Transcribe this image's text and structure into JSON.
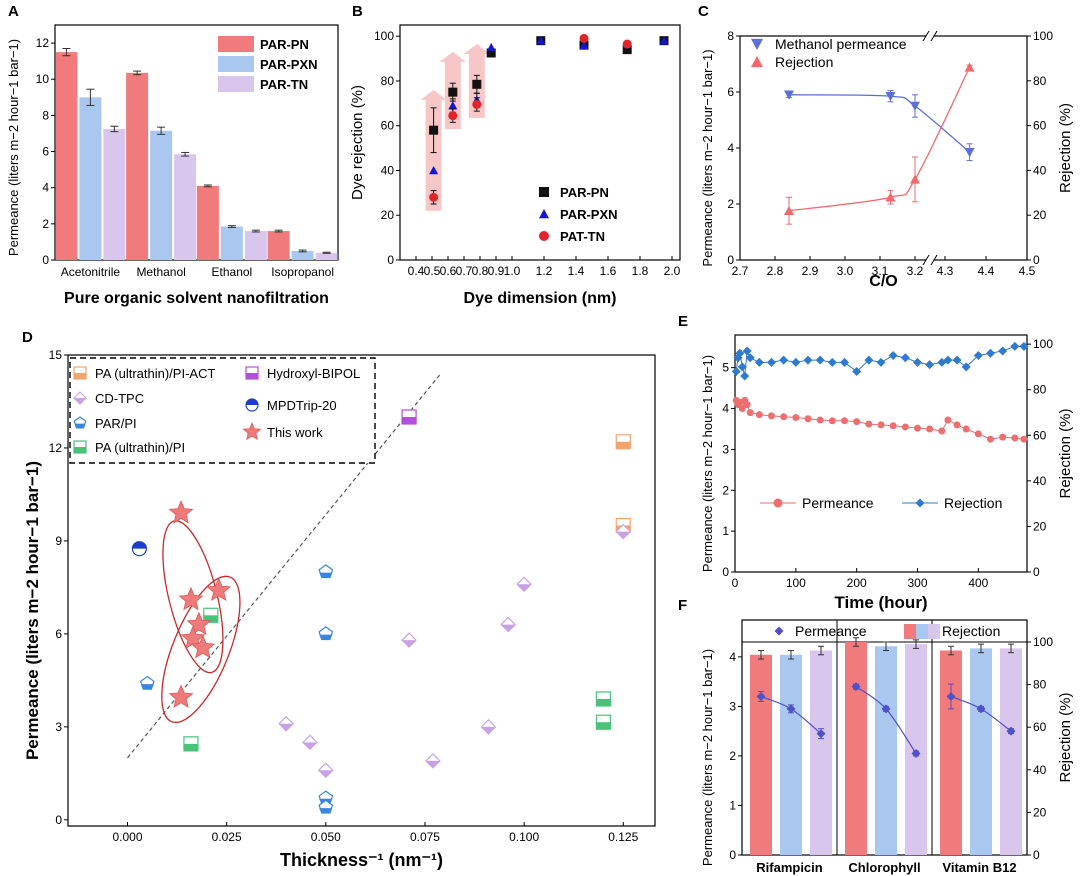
{
  "chart_data": [
    {
      "panel": "A",
      "type": "bar",
      "xlabel": "Pure organic solvent nanofiltration",
      "ylabel": "Permeance (liters m−2 hour−1 bar−1)",
      "ylim": [
        0,
        13
      ],
      "yticks": [
        0,
        2,
        4,
        6,
        8,
        10,
        12
      ],
      "categories": [
        "Acetonitrile",
        "Methanol",
        "Ethanol",
        "Isopropanol"
      ],
      "legend_position": "top-right",
      "series": [
        {
          "name": "PAR-PN",
          "color": "#f07a7c",
          "values": [
            11.5,
            10.35,
            4.1,
            1.6
          ],
          "errors": [
            0.2,
            0.1,
            0.05,
            0.05
          ]
        },
        {
          "name": "PAR-PXN",
          "color": "#a9c7ef",
          "values": [
            9.0,
            7.15,
            1.85,
            0.5
          ],
          "errors": [
            0.45,
            0.2,
            0.05,
            0.05
          ]
        },
        {
          "name": "PAR-TN",
          "color": "#d9c6ec",
          "values": [
            7.25,
            5.85,
            1.6,
            0.4
          ],
          "errors": [
            0.15,
            0.1,
            0.05,
            0.03
          ]
        }
      ]
    },
    {
      "panel": "B",
      "type": "scatter",
      "xlabel": "Dye dimension (nm)",
      "ylabel": "Dye rejection (%)",
      "xlim": [
        0.3,
        2.05
      ],
      "ylim": [
        0,
        105
      ],
      "xticks": [
        0.4,
        0.5,
        0.6,
        0.7,
        0.8,
        0.9,
        1.0,
        1.2,
        1.4,
        1.6,
        1.8,
        2.0
      ],
      "yticks": [
        0,
        20,
        40,
        60,
        80,
        100
      ],
      "legend_position": "bottom-right",
      "arrows_x": [
        0.51,
        0.63,
        0.78
      ],
      "series": [
        {
          "name": "PAR-PN",
          "marker": "square",
          "color": "#111111",
          "x": [
            0.51,
            0.63,
            0.78,
            0.87,
            1.18,
            1.45,
            1.72,
            1.95
          ],
          "y": [
            58,
            75,
            78.5,
            92.5,
            98,
            96,
            94,
            98
          ],
          "errors": [
            10,
            4,
            4,
            1,
            1,
            1,
            1,
            1
          ]
        },
        {
          "name": "PAR-PXN",
          "marker": "triangle",
          "color": "#1515d0",
          "x": [
            0.51,
            0.63,
            0.78,
            0.87,
            1.18,
            1.45,
            1.72,
            1.95
          ],
          "y": [
            40,
            69,
            71.5,
            95,
            98,
            96,
            96.5,
            98
          ],
          "errors": [
            0,
            3,
            3,
            1,
            1,
            1,
            1,
            1
          ]
        },
        {
          "name": "PAT-TN",
          "marker": "circle",
          "color": "#e0262a",
          "x": [
            0.51,
            0.63,
            0.78,
            1.45,
            1.72
          ],
          "y": [
            28,
            64.5,
            69.5,
            99,
            96.5
          ],
          "errors": [
            3,
            3,
            3,
            1,
            1
          ]
        }
      ]
    },
    {
      "panel": "C",
      "type": "line",
      "xlabel": "C/O",
      "ylabel": "Permeance (liters m−2 hour−1 bar−1)",
      "ylabel_right": "Rejection (%)",
      "xticks_left": [
        2.7,
        2.8,
        2.9,
        3.0,
        3.1,
        3.2
      ],
      "xticks_right": [
        4.3,
        4.4,
        4.5
      ],
      "ylim": [
        0,
        8
      ],
      "yticks": [
        0,
        2,
        4,
        6,
        8
      ],
      "ylim_right": [
        0,
        100
      ],
      "yticks_right": [
        0,
        20,
        40,
        60,
        80,
        100
      ],
      "legend_position": "top-left",
      "series": [
        {
          "name": "Methanol permeance",
          "marker": "triangle-down",
          "color": "#5b6fd6",
          "axis": "left",
          "x": [
            2.84,
            3.13,
            3.2,
            4.36
          ],
          "y": [
            5.9,
            5.85,
            5.5,
            3.85
          ],
          "errors": [
            0.1,
            0.2,
            0.4,
            0.3
          ]
        },
        {
          "name": "Rejection",
          "marker": "triangle",
          "color": "#ef6b6b",
          "axis": "right",
          "x": [
            2.84,
            3.13,
            3.2,
            4.36
          ],
          "y": [
            22,
            28,
            36,
            86
          ],
          "errors": [
            6,
            3,
            10,
            1
          ]
        }
      ]
    },
    {
      "panel": "D",
      "type": "scatter",
      "xlabel": "Thickness⁻¹ (nm⁻¹)",
      "ylabel": "Permeance (liters m−2 hour−1 bar−1)",
      "xlim": [
        -0.015,
        0.133
      ],
      "ylim": [
        -0.2,
        15
      ],
      "xticks": [
        "0.000",
        "0.025",
        "0.050",
        "0.075",
        "0.100",
        "0.125"
      ],
      "yticks": [
        0,
        3,
        6,
        9,
        12,
        15
      ],
      "legend_position": "top-left",
      "trend_line": {
        "x": [
          0.0,
          0.079
        ],
        "y": [
          2.0,
          14.4
        ]
      },
      "series": [
        {
          "name": "PA (ultrathin)/PI-ACT",
          "marker": "half-square",
          "color": "#f2a56b",
          "x": [
            0.125,
            0.125
          ],
          "y": [
            12.2,
            9.5
          ]
        },
        {
          "name": "CD-TPC",
          "marker": "diamond",
          "color": "#c9a2e6",
          "x": [
            0.04,
            0.046,
            0.05,
            0.071,
            0.077,
            0.091,
            0.096,
            0.1,
            0.125
          ],
          "y": [
            3.1,
            2.5,
            1.6,
            5.8,
            1.9,
            3.0,
            6.3,
            7.6,
            9.3
          ]
        },
        {
          "name": "PAR/PI",
          "marker": "pentagon",
          "color": "#3a86dd",
          "x": [
            0.005,
            0.05,
            0.05,
            0.05,
            0.05
          ],
          "y": [
            4.4,
            8.0,
            6.0,
            0.7,
            0.4
          ]
        },
        {
          "name": "PA (ultrathin)/PI",
          "marker": "half-square",
          "color": "#49c27a",
          "x": [
            0.016,
            0.021,
            0.12,
            0.12
          ],
          "y": [
            2.45,
            6.6,
            3.9,
            3.15
          ]
        },
        {
          "name": "Hydroxyl-BIPOL",
          "marker": "half-square",
          "color": "#b350d8",
          "x": [
            0.071
          ],
          "y": [
            13.0
          ]
        },
        {
          "name": "MPDTrip-20",
          "marker": "half-circle",
          "color": "#1d3ec9",
          "x": [
            0.003
          ],
          "y": [
            8.75
          ]
        },
        {
          "name": "This work",
          "marker": "star",
          "color": "#ee7a7a",
          "x": [
            0.0135,
            0.016,
            0.018,
            0.023,
            0.0165,
            0.019,
            0.0135
          ],
          "y": [
            9.9,
            7.1,
            6.3,
            7.4,
            5.85,
            5.55,
            3.95
          ]
        }
      ]
    },
    {
      "panel": "E",
      "type": "line",
      "xlabel": "Time (hour)",
      "ylabel": "Permeance (liters m−2 hour−1 bar−1)",
      "ylabel_right": "Rejection (%)",
      "xlim": [
        0,
        480
      ],
      "xticks": [
        0,
        100,
        200,
        300,
        400
      ],
      "ylim": [
        0,
        5.8
      ],
      "yticks": [
        0,
        1,
        2,
        3,
        4,
        5
      ],
      "ylim_right": [
        0,
        104
      ],
      "yticks_right": [
        0,
        20,
        40,
        60,
        80,
        100
      ],
      "legend_position": "bottom",
      "series": [
        {
          "name": "Permeance",
          "marker": "circle",
          "color": "#ec6e6e",
          "axis": "left",
          "x": [
            2,
            5,
            8,
            12,
            16,
            20,
            25,
            40,
            60,
            80,
            100,
            120,
            140,
            160,
            180,
            200,
            220,
            240,
            260,
            280,
            300,
            320,
            340,
            350,
            365,
            380,
            400,
            420,
            440,
            460,
            475
          ],
          "y": [
            4.2,
            4.1,
            4.15,
            4.0,
            4.2,
            4.1,
            3.9,
            3.85,
            3.82,
            3.8,
            3.78,
            3.75,
            3.72,
            3.7,
            3.7,
            3.68,
            3.62,
            3.6,
            3.58,
            3.55,
            3.52,
            3.5,
            3.45,
            3.72,
            3.6,
            3.5,
            3.38,
            3.25,
            3.3,
            3.28,
            3.25
          ]
        },
        {
          "name": "Rejection",
          "marker": "diamond",
          "color": "#2f79cf",
          "axis": "right",
          "x": [
            2,
            5,
            8,
            12,
            16,
            20,
            25,
            40,
            60,
            80,
            100,
            120,
            140,
            160,
            180,
            200,
            220,
            240,
            260,
            280,
            300,
            320,
            340,
            350,
            365,
            380,
            400,
            420,
            440,
            460,
            475
          ],
          "y": [
            88,
            94,
            96,
            90,
            86,
            97,
            94,
            92,
            92,
            93,
            92,
            93,
            93,
            92,
            92,
            88,
            93,
            92,
            95,
            94,
            92,
            91,
            92,
            93,
            93,
            90,
            95,
            96,
            97,
            99,
            99
          ]
        }
      ]
    },
    {
      "panel": "F",
      "type": "bar",
      "categories": [
        "Rifampicin",
        "Chlorophyll",
        "Vitamin B12"
      ],
      "ylabel": "Permeance (liters m−2 hour−1 bar−1)",
      "ylabel_right": "Rejection (%)",
      "ylim": [
        0,
        4.3
      ],
      "yticks": [
        0,
        1,
        2,
        3,
        4
      ],
      "ylim_right": [
        0,
        100
      ],
      "yticks_right": [
        0,
        20,
        40,
        60,
        80,
        100
      ],
      "legend": [
        "Permeance",
        "Rejection"
      ],
      "legend_position": "top",
      "bar_colors": [
        "#f07a7c",
        "#a9c7ef",
        "#d9c6ec"
      ],
      "rejection": [
        [
          94,
          94,
          96
        ],
        [
          100,
          98,
          99
        ],
        [
          96,
          97,
          97
        ]
      ],
      "permeance": [
        [
          3.2,
          2.95,
          2.45
        ],
        [
          3.4,
          2.95,
          2.05
        ],
        [
          3.2,
          2.95,
          2.5
        ]
      ],
      "permeance_errors": [
        [
          0.1,
          0.08,
          0.1
        ],
        [
          0.05,
          0.05,
          0.05
        ],
        [
          0.25,
          0.05,
          0.05
        ]
      ],
      "permeance_color": "#5050c8"
    }
  ],
  "labels": {
    "A": "A",
    "B": "B",
    "C": "C",
    "D": "D",
    "E": "E",
    "F": "F"
  }
}
